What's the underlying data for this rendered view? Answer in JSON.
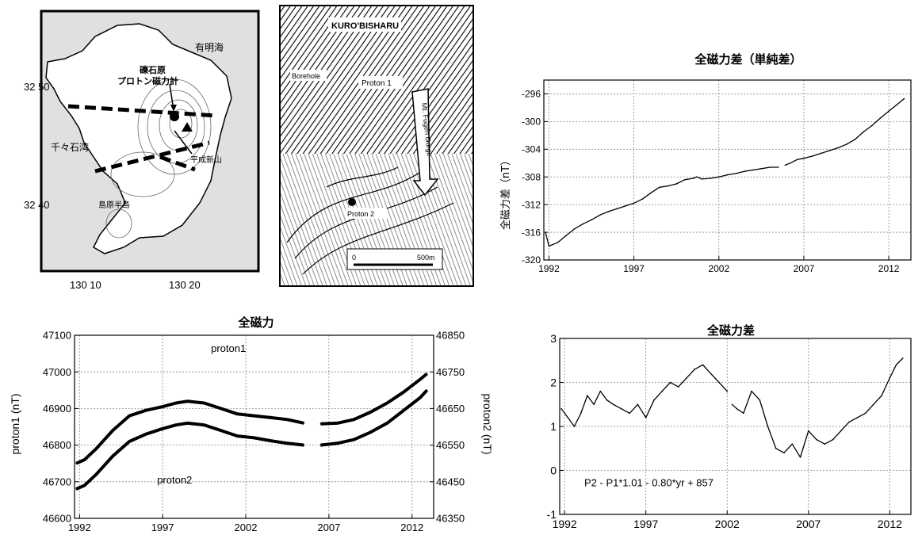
{
  "map": {
    "lat_labels": [
      "32 50",
      "32 40"
    ],
    "lon_labels": [
      "130 10",
      "130 20"
    ],
    "places": [
      "有明海",
      "千々石湾",
      "礫石原",
      "プロトン磁力計",
      "平成新山",
      "島原半島"
    ]
  },
  "site_map": {
    "labels": [
      "KURO'BISHARU",
      "Proton 1",
      "Proton 2",
      "Borehole",
      "Mt. Fugen Gorge",
      "0",
      "500m"
    ]
  },
  "chart_data": [
    {
      "id": "diff_simple",
      "type": "line",
      "title": "全磁力差（単純差）",
      "ylabel": "全磁力差（nT）",
      "xlabel": "",
      "xlim": [
        1991.7,
        2013.3
      ],
      "ylim": [
        -320,
        -294
      ],
      "xticks": [
        1992,
        1997,
        2002,
        2007,
        2012
      ],
      "yticks": [
        -320,
        -316,
        -312,
        -308,
        -304,
        -300,
        -296
      ],
      "grid": true,
      "series": [
        {
          "x": [
            1991.8,
            1992.0,
            1992.5,
            1993.0,
            1993.5,
            1994.0,
            1994.5,
            1995.0,
            1995.5,
            1996.0,
            1996.5,
            1997.0,
            1997.5,
            1998.0,
            1998.5,
            1999.0,
            1999.5,
            2000.0,
            2000.5,
            2000.7,
            2001.0,
            2001.5,
            2002.0,
            2002.5,
            2003.0,
            2003.5,
            2004.0,
            2004.5,
            2005.0,
            2005.5,
            null,
            2005.9,
            2006.2,
            2006.6,
            2007.0,
            2007.5,
            2008.0,
            2008.5,
            2009.0,
            2009.5,
            2010.0,
            2010.5,
            2011.0,
            2011.5,
            2012.0,
            2012.5,
            2012.9
          ],
          "y": [
            -316,
            -318,
            -317.5,
            -316.5,
            -315.5,
            -314.8,
            -314.2,
            -313.5,
            -313,
            -312.6,
            -312.2,
            -311.8,
            -311.2,
            -310.3,
            -309.5,
            -309.3,
            -309,
            -308.4,
            -308.2,
            -308,
            -308.3,
            -308.2,
            -308,
            -307.7,
            -307.5,
            -307.2,
            -307,
            -306.8,
            -306.6,
            -306.6,
            null,
            -306.3,
            -306,
            -305.5,
            -305.3,
            -305,
            -304.6,
            -304.2,
            -303.8,
            -303.3,
            -302.6,
            -301.5,
            -300.6,
            -299.5,
            -298.5,
            -297.5,
            -296.7
          ]
        }
      ],
      "annotations": []
    },
    {
      "id": "total_field",
      "type": "line",
      "title": "全磁力",
      "ylabel": "proton1 (nT)",
      "y2label": "proton2 (nT)",
      "xlim": [
        1991.7,
        2013.3
      ],
      "ylim": [
        46600,
        47100
      ],
      "y2lim": [
        46350,
        46850
      ],
      "xticks": [
        1992,
        1997,
        2002,
        2007,
        2012
      ],
      "yticks": [
        46600,
        46700,
        46800,
        46900,
        47000,
        47100
      ],
      "y2ticks": [
        46350,
        46450,
        46550,
        46650,
        46750,
        46850
      ],
      "grid": true,
      "series": [
        {
          "name": "proton1",
          "x": [
            1991.8,
            1992.3,
            1993.0,
            1994.0,
            1995.0,
            1996.0,
            1997.0,
            1997.8,
            1998.5,
            1999.5,
            2000.5,
            2001.5,
            2002.5,
            2003.5,
            2004.5,
            2005.5,
            null,
            2006.5,
            2007.5,
            2008.5,
            2009.5,
            2010.5,
            2011.5,
            2012.5,
            2012.9
          ],
          "y": [
            46750,
            46760,
            46790,
            46840,
            46880,
            46895,
            46905,
            46915,
            46920,
            46915,
            46900,
            46885,
            46880,
            46875,
            46870,
            46860,
            null,
            46858,
            46860,
            46870,
            46890,
            46915,
            46945,
            46980,
            46995
          ]
        },
        {
          "name": "proton2",
          "x": [
            1991.8,
            1992.3,
            1993.0,
            1994.0,
            1995.0,
            1996.0,
            1997.0,
            1997.8,
            1998.5,
            1999.5,
            2000.5,
            2001.5,
            2002.5,
            2003.5,
            2004.5,
            2005.5,
            null,
            2006.5,
            2007.5,
            2008.5,
            2009.5,
            2010.5,
            2011.5,
            2012.5,
            2012.9
          ],
          "y": [
            46680,
            46690,
            46720,
            46770,
            46810,
            46830,
            46845,
            46855,
            46860,
            46855,
            46840,
            46825,
            46820,
            46812,
            46805,
            46800,
            null,
            46800,
            46805,
            46815,
            46835,
            46860,
            46895,
            46930,
            46950
          ]
        }
      ],
      "annotations": [
        "proton1",
        "proton2"
      ]
    },
    {
      "id": "diff_corrected",
      "type": "line",
      "title": "全磁力差",
      "ylabel": "",
      "xlim": [
        1991.7,
        2013.3
      ],
      "ylim": [
        -1,
        3
      ],
      "xticks": [
        1992,
        1997,
        2002,
        2007,
        2012
      ],
      "yticks": [
        -1,
        0,
        1,
        2,
        3
      ],
      "grid": true,
      "series": [
        {
          "x": [
            1991.8,
            1992.2,
            1992.6,
            1993.0,
            1993.4,
            1993.8,
            1994.2,
            1994.6,
            1995.0,
            1995.5,
            1996.0,
            1996.5,
            1997.0,
            1997.5,
            1998.0,
            1998.5,
            1999.0,
            1999.5,
            2000.0,
            2000.5,
            2001.0,
            2001.5,
            2002.0,
            null,
            2002.3,
            2002.6,
            2003.0,
            2003.5,
            2004.0,
            2004.5,
            2005.0,
            2005.5,
            2006.0,
            2006.5,
            2007.0,
            2007.5,
            2008.0,
            2008.5,
            2009.0,
            2009.5,
            2010.0,
            2010.5,
            2011.0,
            2011.5,
            2012.0,
            2012.4,
            2012.8
          ],
          "y": [
            1.4,
            1.2,
            1.0,
            1.3,
            1.7,
            1.5,
            1.8,
            1.6,
            1.5,
            1.4,
            1.3,
            1.5,
            1.2,
            1.6,
            1.8,
            2.0,
            1.9,
            2.1,
            2.3,
            2.4,
            2.2,
            2.0,
            1.8,
            null,
            1.5,
            1.4,
            1.3,
            1.8,
            1.6,
            1.0,
            0.5,
            0.4,
            0.6,
            0.3,
            0.9,
            0.7,
            0.6,
            0.7,
            0.9,
            1.1,
            1.2,
            1.3,
            1.5,
            1.7,
            2.1,
            2.4,
            2.55
          ]
        }
      ],
      "annotations": [
        "P2 - P1*1.01 - 0.80*yr + 857"
      ]
    }
  ]
}
